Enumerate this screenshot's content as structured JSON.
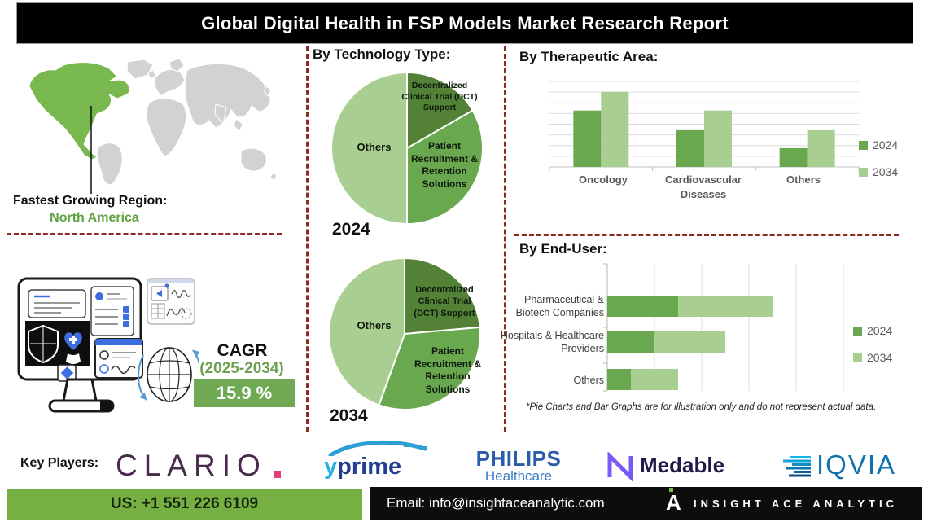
{
  "title": "Global Digital Health in FSP Models Market Research Report",
  "fastest_region": {
    "label": "Fastest Growing Region:",
    "value": "North America"
  },
  "cagr": {
    "label": "CAGR",
    "period": "(2025-2034)",
    "value": "15.9 %"
  },
  "sections": {
    "technology": {
      "heading": "By Technology Type:"
    },
    "therapeutic": {
      "heading": "By Therapeutic Area:"
    },
    "end_user": {
      "heading": "By End-User:"
    }
  },
  "footnote": "*Pie Charts and Bar Graphs are for illustration only and do not represent actual data.",
  "key_players": {
    "label": "Key Players:",
    "clario": {
      "name": "CLARIO"
    },
    "yprime": {
      "prefix": "y",
      "rest": "prime"
    },
    "philips": {
      "name": "PHILIPS",
      "sub": "Healthcare"
    },
    "medable": {
      "name": "Medable"
    },
    "iqvia": {
      "name": "IQVIA"
    }
  },
  "footer": {
    "phone": "US: +1 551 226 6109",
    "email": "Email: info@insightaceanalytic.com",
    "brand": "INSIGHT ACE ANALYTIC",
    "brand_mark": "A"
  },
  "colors": {
    "dark_green": "#538135",
    "mid_green": "#6aa84f",
    "light_green": "#a9ce92",
    "map_green": "#79b84e",
    "map_gray": "#d2d2d2",
    "dash_red": "#8f2a23",
    "footer_green": "#76b043"
  },
  "chart_data": [
    {
      "type": "pie",
      "year": "2024",
      "section": "By Technology Type",
      "slices": [
        {
          "label": "Decentralized Clinical Trial (DCT) Support",
          "value": 16.7,
          "color": "#538135"
        },
        {
          "label": "Patient Recruitment & Retention Solutions",
          "value": 33.3,
          "color": "#6aa84f"
        },
        {
          "label": "Others",
          "value": 50.0,
          "color": "#a9ce92"
        }
      ],
      "note": "illustrative proportions"
    },
    {
      "type": "pie",
      "year": "2034",
      "section": "By Technology Type",
      "slices": [
        {
          "label": "Decentralized Clinical Trial (DCT) Support",
          "value": 23.6,
          "color": "#538135"
        },
        {
          "label": "Patient Recruitment & Retention Solutions",
          "value": 31.9,
          "color": "#6aa84f"
        },
        {
          "label": "Others",
          "value": 44.5,
          "color": "#a9ce92"
        }
      ],
      "note": "illustrative proportions"
    },
    {
      "type": "bar",
      "section": "By Therapeutic Area",
      "categories": [
        "Oncology",
        "Cardiovascular Diseases",
        "Others"
      ],
      "series": [
        {
          "name": "2024",
          "color": "#6aa84f",
          "values": [
            0.66,
            0.43,
            0.22
          ]
        },
        {
          "name": "2034",
          "color": "#a9ce92",
          "values": [
            0.88,
            0.66,
            0.43
          ]
        }
      ],
      "ylim": [
        0,
        1
      ],
      "grid": true,
      "legend_position": "right",
      "note": "illustrative proportions"
    },
    {
      "type": "stacked-hbar",
      "section": "By End-User",
      "categories": [
        "Pharmaceutical & Biotech Companies",
        "Hospitals & Healthcare Providers",
        "Others"
      ],
      "series": [
        {
          "name": "2024",
          "color": "#6aa84f",
          "values": [
            1.5,
            1.0,
            0.5
          ]
        },
        {
          "name": "2034",
          "color": "#a9ce92",
          "values": [
            2.0,
            1.5,
            1.0
          ]
        }
      ],
      "xlim": [
        0,
        5
      ],
      "grid": true,
      "legend_position": "right",
      "note": "illustrative proportions"
    }
  ]
}
